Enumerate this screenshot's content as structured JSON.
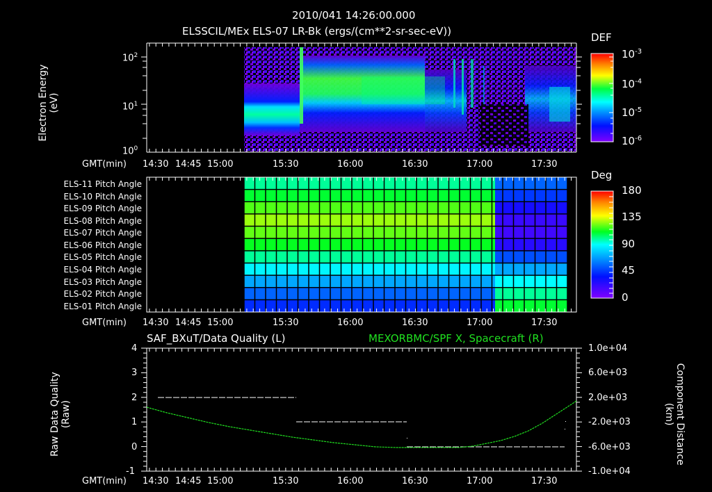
{
  "header": {
    "timestamp": "2010/041 14:26:00.000",
    "subtitle": "ELSSCIL/MEx ELS-07 LR-Bk  (ergs/(cm**2-sr-sec-eV))"
  },
  "time_axis": {
    "label": "GMT(min)",
    "ticks": [
      "14:30",
      "14:45",
      "15:00",
      "15:30",
      "16:00",
      "16:30",
      "17:00",
      "17:30"
    ]
  },
  "panel1": {
    "ylabel_line1": "Electron Energy",
    "ylabel_line2": "(eV)",
    "yticks": [
      {
        "base": "10",
        "exp": "2"
      },
      {
        "base": "10",
        "exp": "1"
      },
      {
        "base": "10",
        "exp": "0"
      }
    ],
    "colorbar": {
      "title": "DEF",
      "ticks": [
        {
          "base": "10",
          "exp": "-3"
        },
        {
          "base": "10",
          "exp": "-4"
        },
        {
          "base": "10",
          "exp": "-5"
        },
        {
          "base": "10",
          "exp": "-6"
        }
      ]
    }
  },
  "panel2": {
    "row_labels": [
      "ELS-11 Pitch Angle",
      "ELS-10 Pitch Angle",
      "ELS-09 Pitch Angle",
      "ELS-08 Pitch Angle",
      "ELS-07 Pitch Angle",
      "ELS-06 Pitch Angle",
      "ELS-05 Pitch Angle",
      "ELS-04 Pitch Angle",
      "ELS-03 Pitch Angle",
      "ELS-02 Pitch Angle",
      "ELS-01 Pitch Angle"
    ],
    "colorbar": {
      "title": "Deg",
      "ticks": [
        "180",
        "135",
        "90",
        "45",
        "0"
      ]
    }
  },
  "panel3": {
    "title_left": "SAF_BXuT/Data Quality (L)",
    "title_right": "MEXORBMC/SPF X, Spacecraft (R)",
    "ylabel_left_line1": "Raw Data Quality",
    "ylabel_left_line2": "(Raw)",
    "yticks_left": [
      "4",
      "3",
      "2",
      "1",
      "0",
      "-1"
    ],
    "ylabel_right_line1": "Component Distance",
    "ylabel_right_line2": "(km)",
    "yticks_right": [
      "1.0e+04",
      "6.0e+03",
      "2.0e+03",
      "-2.0e+03",
      "-6.0e+03",
      "-1.0e+04"
    ]
  },
  "colors": {
    "background": "#000000",
    "axis": "#ffffff",
    "orbit_line": "#20e020"
  },
  "chart_data": [
    {
      "type": "heatmap",
      "title": "ELSSCIL/MEx ELS-07 LR-Bk (ergs/(cm**2-sr-sec-eV))",
      "xlabel": "GMT(min)",
      "ylabel": "Electron Energy (eV)",
      "yscale": "log",
      "ylim": [
        1,
        150
      ],
      "x_ticks": [
        "14:30",
        "14:45",
        "15:00",
        "15:30",
        "16:00",
        "16:30",
        "17:00",
        "17:30"
      ],
      "data_start": "15:13",
      "colorbar": {
        "label": "DEF",
        "scale": "log",
        "range": [
          1e-06,
          0.001
        ]
      },
      "features": [
        {
          "time": "15:13-15:39",
          "energy_eV": "3-10",
          "level": "~2e-5 (cyan/green band)"
        },
        {
          "time": "15:39",
          "energy_eV": "5-100",
          "level": "~1e-4 (energy spike onset)"
        },
        {
          "time": "15:40-16:20",
          "energy_eV": "10-30",
          "level": "~5e-5 to 1e-4 (green band)"
        },
        {
          "time": "16:50-17:00",
          "energy_eV": "10-100",
          "level": "~1e-5 (narrow vertical bursts)"
        },
        {
          "time": "17:20-17:45",
          "energy_eV": "3-20",
          "level": "~1e-5 to 3e-5"
        }
      ]
    },
    {
      "type": "heatmap",
      "title": "ELS Pitch Angle",
      "xlabel": "GMT(min)",
      "categories": [
        "ELS-11",
        "ELS-10",
        "ELS-09",
        "ELS-08",
        "ELS-07",
        "ELS-06",
        "ELS-05",
        "ELS-04",
        "ELS-03",
        "ELS-02",
        "ELS-01"
      ],
      "colorbar": {
        "label": "Deg",
        "range": [
          0,
          180
        ]
      },
      "data_start": "15:13",
      "values_before_17_10_deg": [
        100,
        110,
        120,
        128,
        122,
        112,
        100,
        88,
        70,
        55,
        42
      ],
      "values_after_17_10_deg": [
        55,
        45,
        30,
        20,
        18,
        25,
        50,
        70,
        90,
        100,
        110
      ]
    },
    {
      "type": "line",
      "title": "SAF_BXuT/Data Quality (L) | MEXORBMC/SPF X, Spacecraft (R)",
      "xlabel": "GMT(min)",
      "ylabel": "Raw Data Quality (Raw)",
      "ylabel_right": "Component Distance (km)",
      "ylim": [
        -1,
        4
      ],
      "ylim_right": [
        -10000,
        10000
      ],
      "series": [
        {
          "name": "Data Quality (L)",
          "color": "#ffffff",
          "points": [
            {
              "x": "14:33",
              "y": 2
            },
            {
              "x": "15:39",
              "y": 2
            },
            {
              "x": "15:39",
              "y": 1
            },
            {
              "x": "16:27",
              "y": 1
            },
            {
              "x": "16:27",
              "y": 0
            },
            {
              "x": "17:43",
              "y": 0
            }
          ]
        },
        {
          "name": "SPF X, Spacecraft (R) km",
          "color": "#20e020",
          "points": [
            {
              "x": "14:26",
              "y": 4000
            },
            {
              "x": "15:00",
              "y": 2000
            },
            {
              "x": "15:30",
              "y": -1500
            },
            {
              "x": "16:00",
              "y": -4000
            },
            {
              "x": "16:30",
              "y": -6000
            },
            {
              "x": "17:00",
              "y": -6000
            },
            {
              "x": "17:15",
              "y": -4700
            },
            {
              "x": "17:30",
              "y": -2400
            },
            {
              "x": "17:48",
              "y": 1500
            }
          ]
        }
      ]
    }
  ]
}
